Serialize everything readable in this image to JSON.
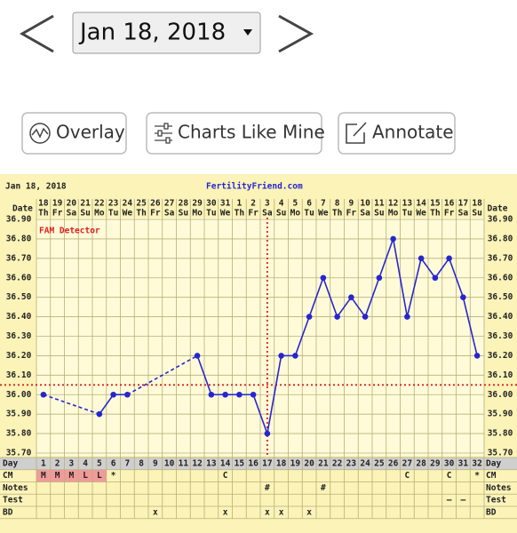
{
  "nav": {
    "date": "Jan 18, 2018"
  },
  "buttons": [
    "Overlay",
    "Charts Like Mine",
    "Annotate"
  ],
  "chart_data": {
    "type": "line",
    "header_date": "Jan 18, 2018",
    "site": "FertilityFriend.com",
    "date_label": "Date",
    "dates": [
      "18",
      "19",
      "20",
      "21",
      "22",
      "23",
      "24",
      "25",
      "26",
      "27",
      "28",
      "29",
      "30",
      "31",
      "1",
      "2",
      "3",
      "4",
      "5",
      "6",
      "7",
      "8",
      "9",
      "10",
      "11",
      "12",
      "13",
      "14",
      "15",
      "16",
      "17",
      "18"
    ],
    "weekdays": [
      "Th",
      "Fr",
      "Sa",
      "Su",
      "Mo",
      "Tu",
      "We",
      "Th",
      "Fr",
      "Sa",
      "Su",
      "Mo",
      "Tu",
      "We",
      "Th",
      "Fr",
      "Sa",
      "Su",
      "Mo",
      "Tu",
      "We",
      "Th",
      "Fr",
      "Sa",
      "Su",
      "Mo",
      "Tu",
      "We",
      "Th",
      "Fr",
      "Sa",
      "Su"
    ],
    "values": [
      36.0,
      null,
      null,
      null,
      35.9,
      36.0,
      36.0,
      null,
      null,
      null,
      null,
      36.2,
      36.0,
      36.0,
      36.0,
      36.0,
      35.8,
      36.2,
      36.2,
      36.4,
      36.6,
      36.4,
      36.5,
      36.4,
      36.6,
      36.8,
      36.4,
      36.7,
      36.6,
      36.7,
      36.5,
      36.2
    ],
    "color": "#2626d0",
    "ylim": [
      35.7,
      36.9
    ],
    "yticks": [
      {
        "value": 35.7,
        "label": "35.70"
      },
      {
        "value": 35.8,
        "label": "35.80"
      },
      {
        "value": 35.9,
        "label": "35.90"
      },
      {
        "value": 36.0,
        "label": "36.00"
      },
      {
        "value": 36.1,
        "label": "36.10"
      },
      {
        "value": 36.2,
        "label": "36.20"
      },
      {
        "value": 36.3,
        "label": "36.30"
      },
      {
        "value": 36.4,
        "label": "36.40"
      },
      {
        "value": 36.5,
        "label": "36.50"
      },
      {
        "value": 36.6,
        "label": "36.60"
      },
      {
        "value": 36.7,
        "label": "36.70"
      },
      {
        "value": 36.8,
        "label": "36.80"
      },
      {
        "value": 36.9,
        "label": "36.90"
      }
    ],
    "coverline": 36.05,
    "ovulation_day": 17,
    "detector_label": "FAM Detector",
    "marker_color": "#e02020",
    "period_days": [
      1,
      2,
      3,
      4,
      5
    ],
    "period_color": "#f29a9a",
    "rows": [
      {
        "name": "Day",
        "cells": [
          1,
          2,
          3,
          4,
          5,
          6,
          7,
          8,
          9,
          10,
          11,
          12,
          13,
          14,
          15,
          16,
          17,
          18,
          19,
          20,
          21,
          22,
          23,
          24,
          25,
          26,
          27,
          28,
          29,
          30,
          31,
          32
        ]
      },
      {
        "name": "CM",
        "cells": [
          "M",
          "M",
          "M",
          "L",
          "L",
          "*",
          null,
          null,
          null,
          null,
          null,
          null,
          null,
          "C",
          null,
          null,
          null,
          null,
          null,
          null,
          null,
          null,
          null,
          null,
          null,
          null,
          "C",
          null,
          null,
          "C",
          null,
          "*"
        ]
      },
      {
        "name": "Notes",
        "cells": [
          null,
          null,
          null,
          null,
          null,
          null,
          null,
          null,
          null,
          null,
          null,
          null,
          null,
          null,
          null,
          null,
          "#",
          null,
          null,
          null,
          "#",
          null,
          null,
          null,
          null,
          null,
          null,
          null,
          null,
          null,
          null,
          null
        ]
      },
      {
        "name": "Test",
        "cells": [
          null,
          null,
          null,
          null,
          null,
          null,
          null,
          null,
          null,
          null,
          null,
          null,
          null,
          null,
          null,
          null,
          null,
          null,
          null,
          null,
          null,
          null,
          null,
          null,
          null,
          null,
          null,
          null,
          null,
          "–",
          "–",
          null
        ]
      },
      {
        "name": "BD",
        "cells": [
          null,
          null,
          null,
          null,
          null,
          null,
          null,
          null,
          "x",
          null,
          null,
          null,
          null,
          "x",
          null,
          null,
          "x",
          "x",
          null,
          "x",
          null,
          null,
          null,
          null,
          null,
          null,
          null,
          null,
          null,
          null,
          null,
          null
        ]
      }
    ]
  }
}
